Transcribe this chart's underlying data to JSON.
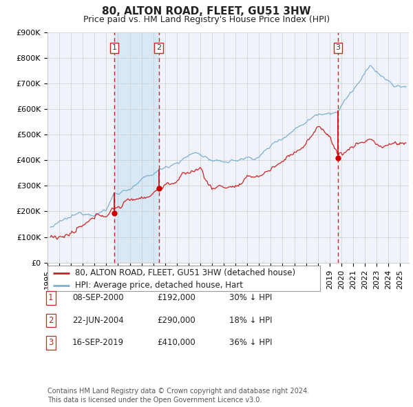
{
  "title": "80, ALTON ROAD, FLEET, GU51 3HW",
  "subtitle": "Price paid vs. HM Land Registry's House Price Index (HPI)",
  "ylim": [
    0,
    900000
  ],
  "yticks": [
    0,
    100000,
    200000,
    300000,
    400000,
    500000,
    600000,
    700000,
    800000,
    900000
  ],
  "ytick_labels": [
    "£0",
    "£100K",
    "£200K",
    "£300K",
    "£400K",
    "£500K",
    "£600K",
    "£700K",
    "£800K",
    "£900K"
  ],
  "xlim_start": 1995.0,
  "xlim_end": 2025.75,
  "hpi_color": "#7ab0d4",
  "price_color": "#cc2222",
  "sale_color": "#cc0000",
  "grid_color": "#cccccc",
  "bg_color": "#f0f4fa",
  "highlight_bg": "#d8e8f4",
  "dashed_line_color": "#cc2222",
  "transactions": [
    {
      "date_x": 2000.69,
      "price": 192000,
      "label": "1"
    },
    {
      "date_x": 2004.47,
      "price": 290000,
      "label": "2"
    },
    {
      "date_x": 2019.71,
      "price": 410000,
      "label": "3"
    }
  ],
  "legend_entries": [
    "80, ALTON ROAD, FLEET, GU51 3HW (detached house)",
    "HPI: Average price, detached house, Hart"
  ],
  "table_rows": [
    [
      "1",
      "08-SEP-2000",
      "£192,000",
      "30% ↓ HPI"
    ],
    [
      "2",
      "22-JUN-2004",
      "£290,000",
      "18% ↓ HPI"
    ],
    [
      "3",
      "16-SEP-2019",
      "£410,000",
      "36% ↓ HPI"
    ]
  ],
  "footer": "Contains HM Land Registry data © Crown copyright and database right 2024.\nThis data is licensed under the Open Government Licence v3.0.",
  "title_fontsize": 11,
  "subtitle_fontsize": 9,
  "tick_fontsize": 8,
  "legend_fontsize": 8.5,
  "table_fontsize": 8.5,
  "footer_fontsize": 7
}
